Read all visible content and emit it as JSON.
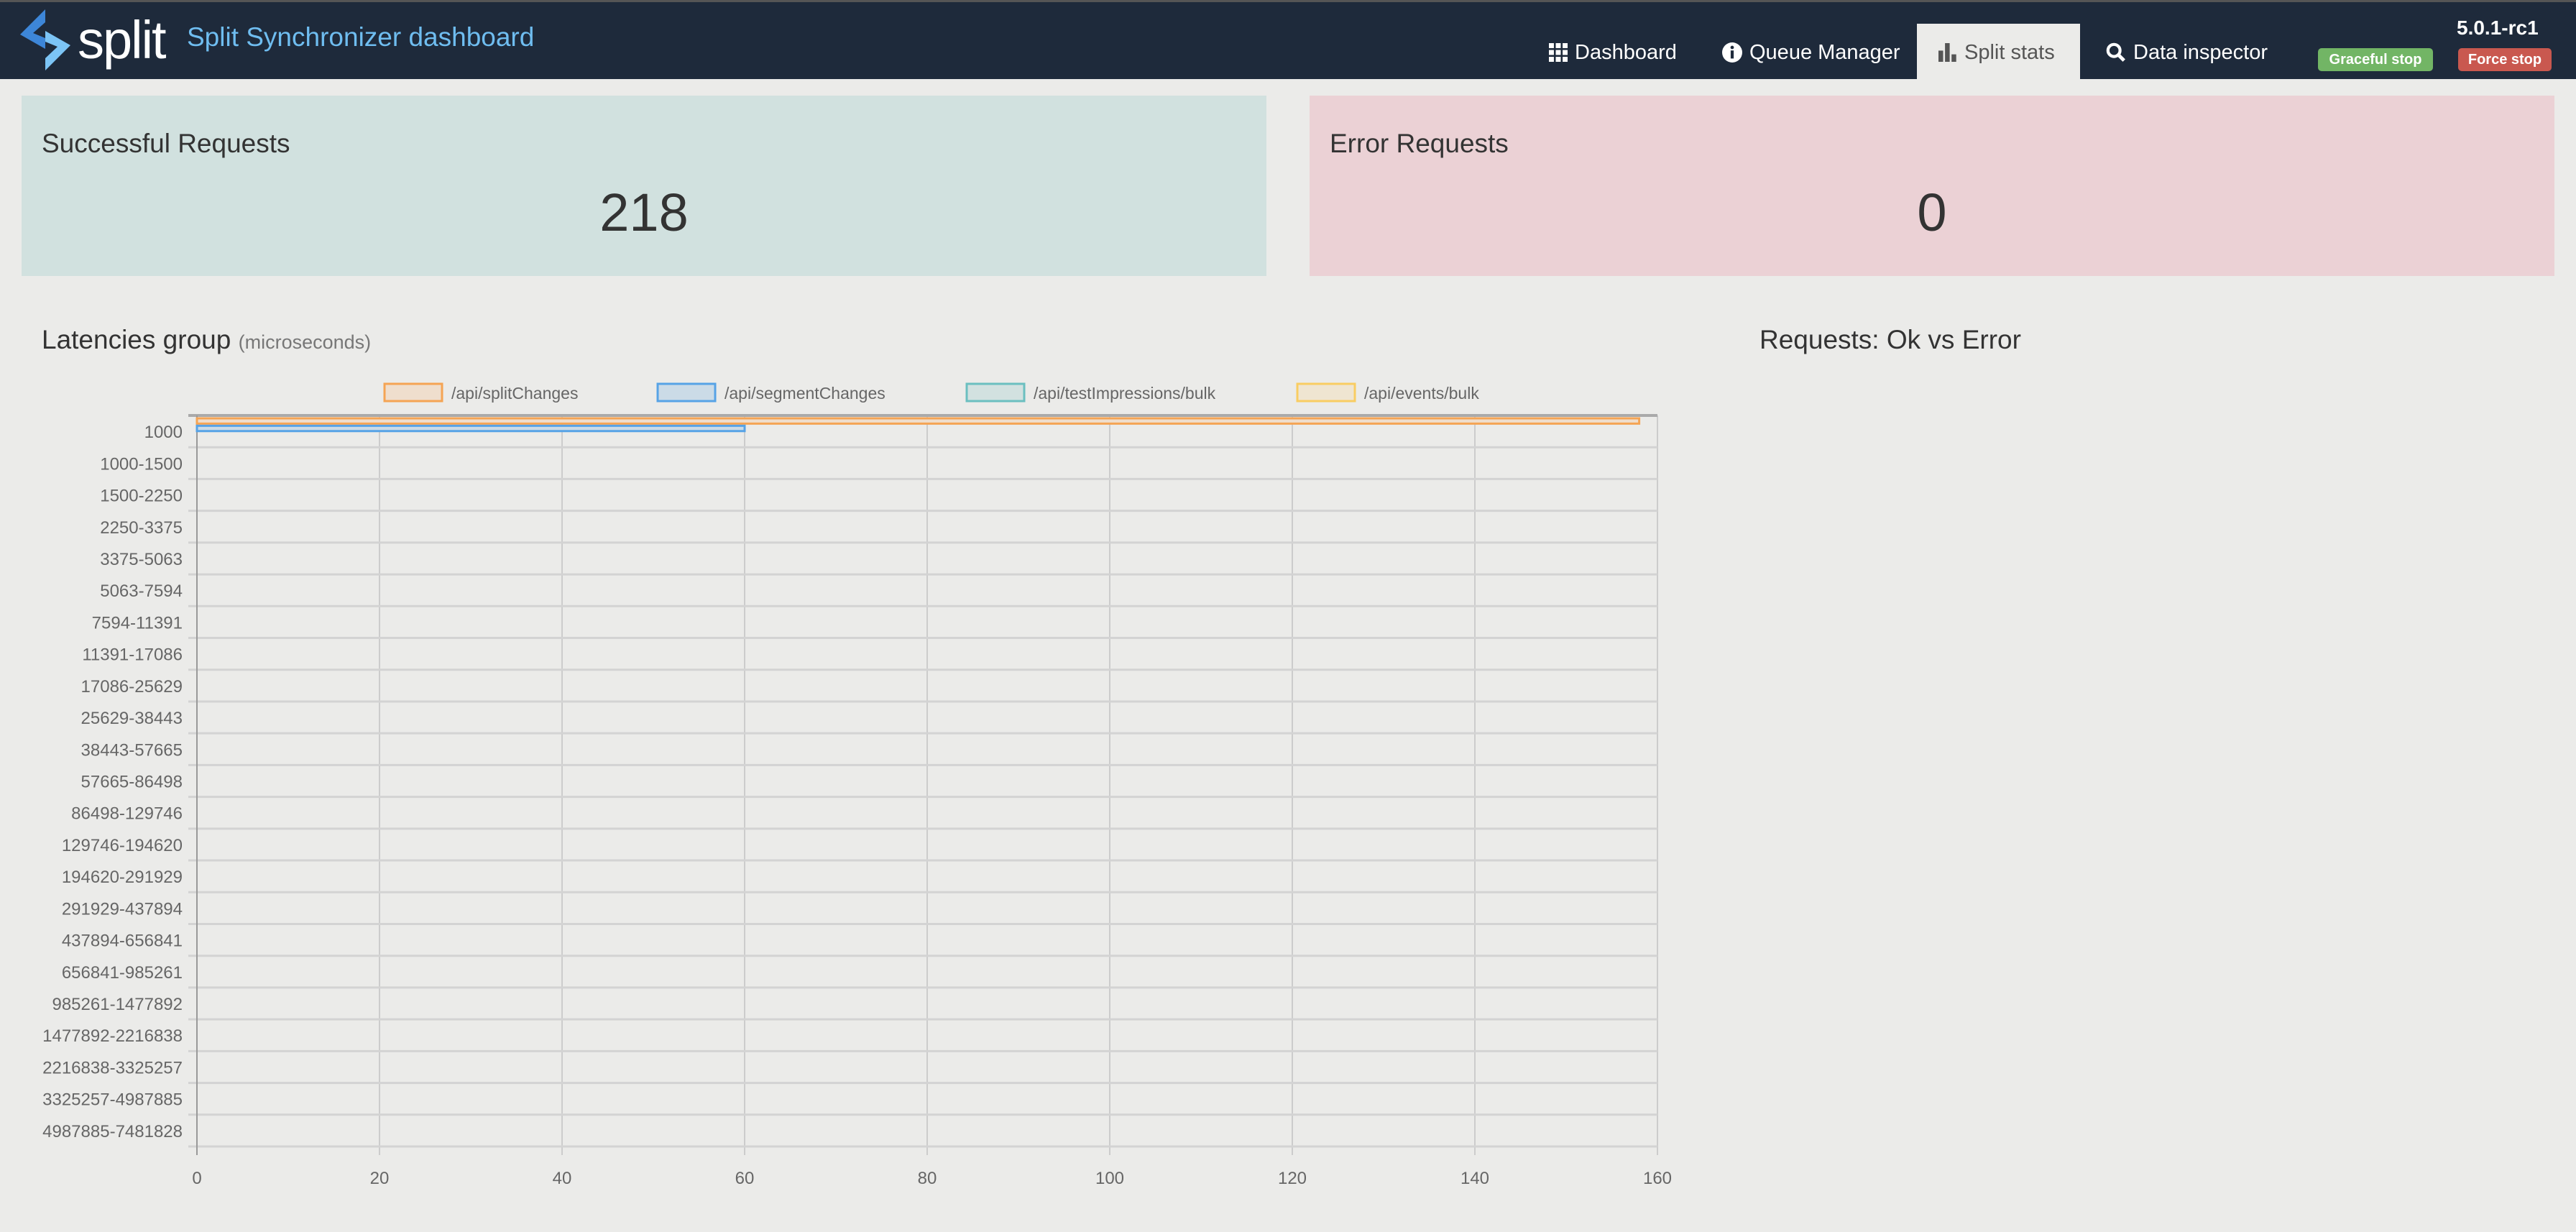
{
  "header": {
    "logo_text": "split",
    "title": "Split Synchronizer dashboard",
    "version": "5.0.1-rc1",
    "nav": [
      {
        "label": "Dashboard",
        "icon": "grid-icon"
      },
      {
        "label": "Queue Manager",
        "icon": "info-circle-icon"
      },
      {
        "label": "Split stats",
        "icon": "bar-chart-icon",
        "active": true
      },
      {
        "label": "Data inspector",
        "icon": "search-icon"
      }
    ],
    "graceful_stop": "Graceful stop",
    "force_stop": "Force stop"
  },
  "cards": {
    "success": {
      "label": "Successful Requests",
      "value": "218",
      "color": "#d1e1df"
    },
    "error": {
      "label": "Error Requests",
      "value": "0",
      "color": "#ebd1d5"
    }
  },
  "latencies": {
    "title": "Latencies group",
    "unit": "(microseconds)"
  },
  "requests_chart": {
    "title": "Requests: Ok vs Error"
  },
  "chart_data": {
    "type": "bar",
    "orientation": "horizontal",
    "grid": true,
    "legend": "top",
    "xlim": [
      0,
      160
    ],
    "x_ticks": [
      0,
      20,
      40,
      60,
      80,
      100,
      120,
      140,
      160
    ],
    "categories": [
      "1000",
      "1000-1500",
      "1500-2250",
      "2250-3375",
      "3375-5063",
      "5063-7594",
      "7594-11391",
      "11391-17086",
      "17086-25629",
      "25629-38443",
      "38443-57665",
      "57665-86498",
      "86498-129746",
      "129746-194620",
      "194620-291929",
      "291929-437894",
      "437894-656841",
      "656841-985261",
      "985261-1477892",
      "1477892-2216838",
      "2216838-3325257",
      "3325257-4987885",
      "4987885-7481828"
    ],
    "series": [
      {
        "name": "/api/splitChanges",
        "color": "#f5a454",
        "fill": "#efdecd",
        "values": [
          158,
          0,
          0,
          0,
          0,
          0,
          0,
          0,
          0,
          0,
          0,
          0,
          0,
          0,
          0,
          0,
          0,
          0,
          0,
          0,
          0,
          0,
          0
        ]
      },
      {
        "name": "/api/segmentChanges",
        "color": "#57a3e6",
        "fill": "#cbdbe7",
        "values": [
          60,
          0,
          0,
          0,
          0,
          0,
          0,
          0,
          0,
          0,
          0,
          0,
          0,
          0,
          0,
          0,
          0,
          0,
          0,
          0,
          0,
          0,
          0
        ]
      },
      {
        "name": "/api/testImpressions/bulk",
        "color": "#6bbfc0",
        "fill": "#d2e1e0",
        "values": [
          0,
          0,
          0,
          0,
          0,
          0,
          0,
          0,
          0,
          0,
          0,
          0,
          0,
          0,
          0,
          0,
          0,
          0,
          0,
          0,
          0,
          0,
          0
        ]
      },
      {
        "name": "/api/events/bulk",
        "color": "#f9cd62",
        "fill": "#efe5d1",
        "values": [
          0,
          0,
          0,
          0,
          0,
          0,
          0,
          0,
          0,
          0,
          0,
          0,
          0,
          0,
          0,
          0,
          0,
          0,
          0,
          0,
          0,
          0,
          0
        ]
      }
    ]
  }
}
